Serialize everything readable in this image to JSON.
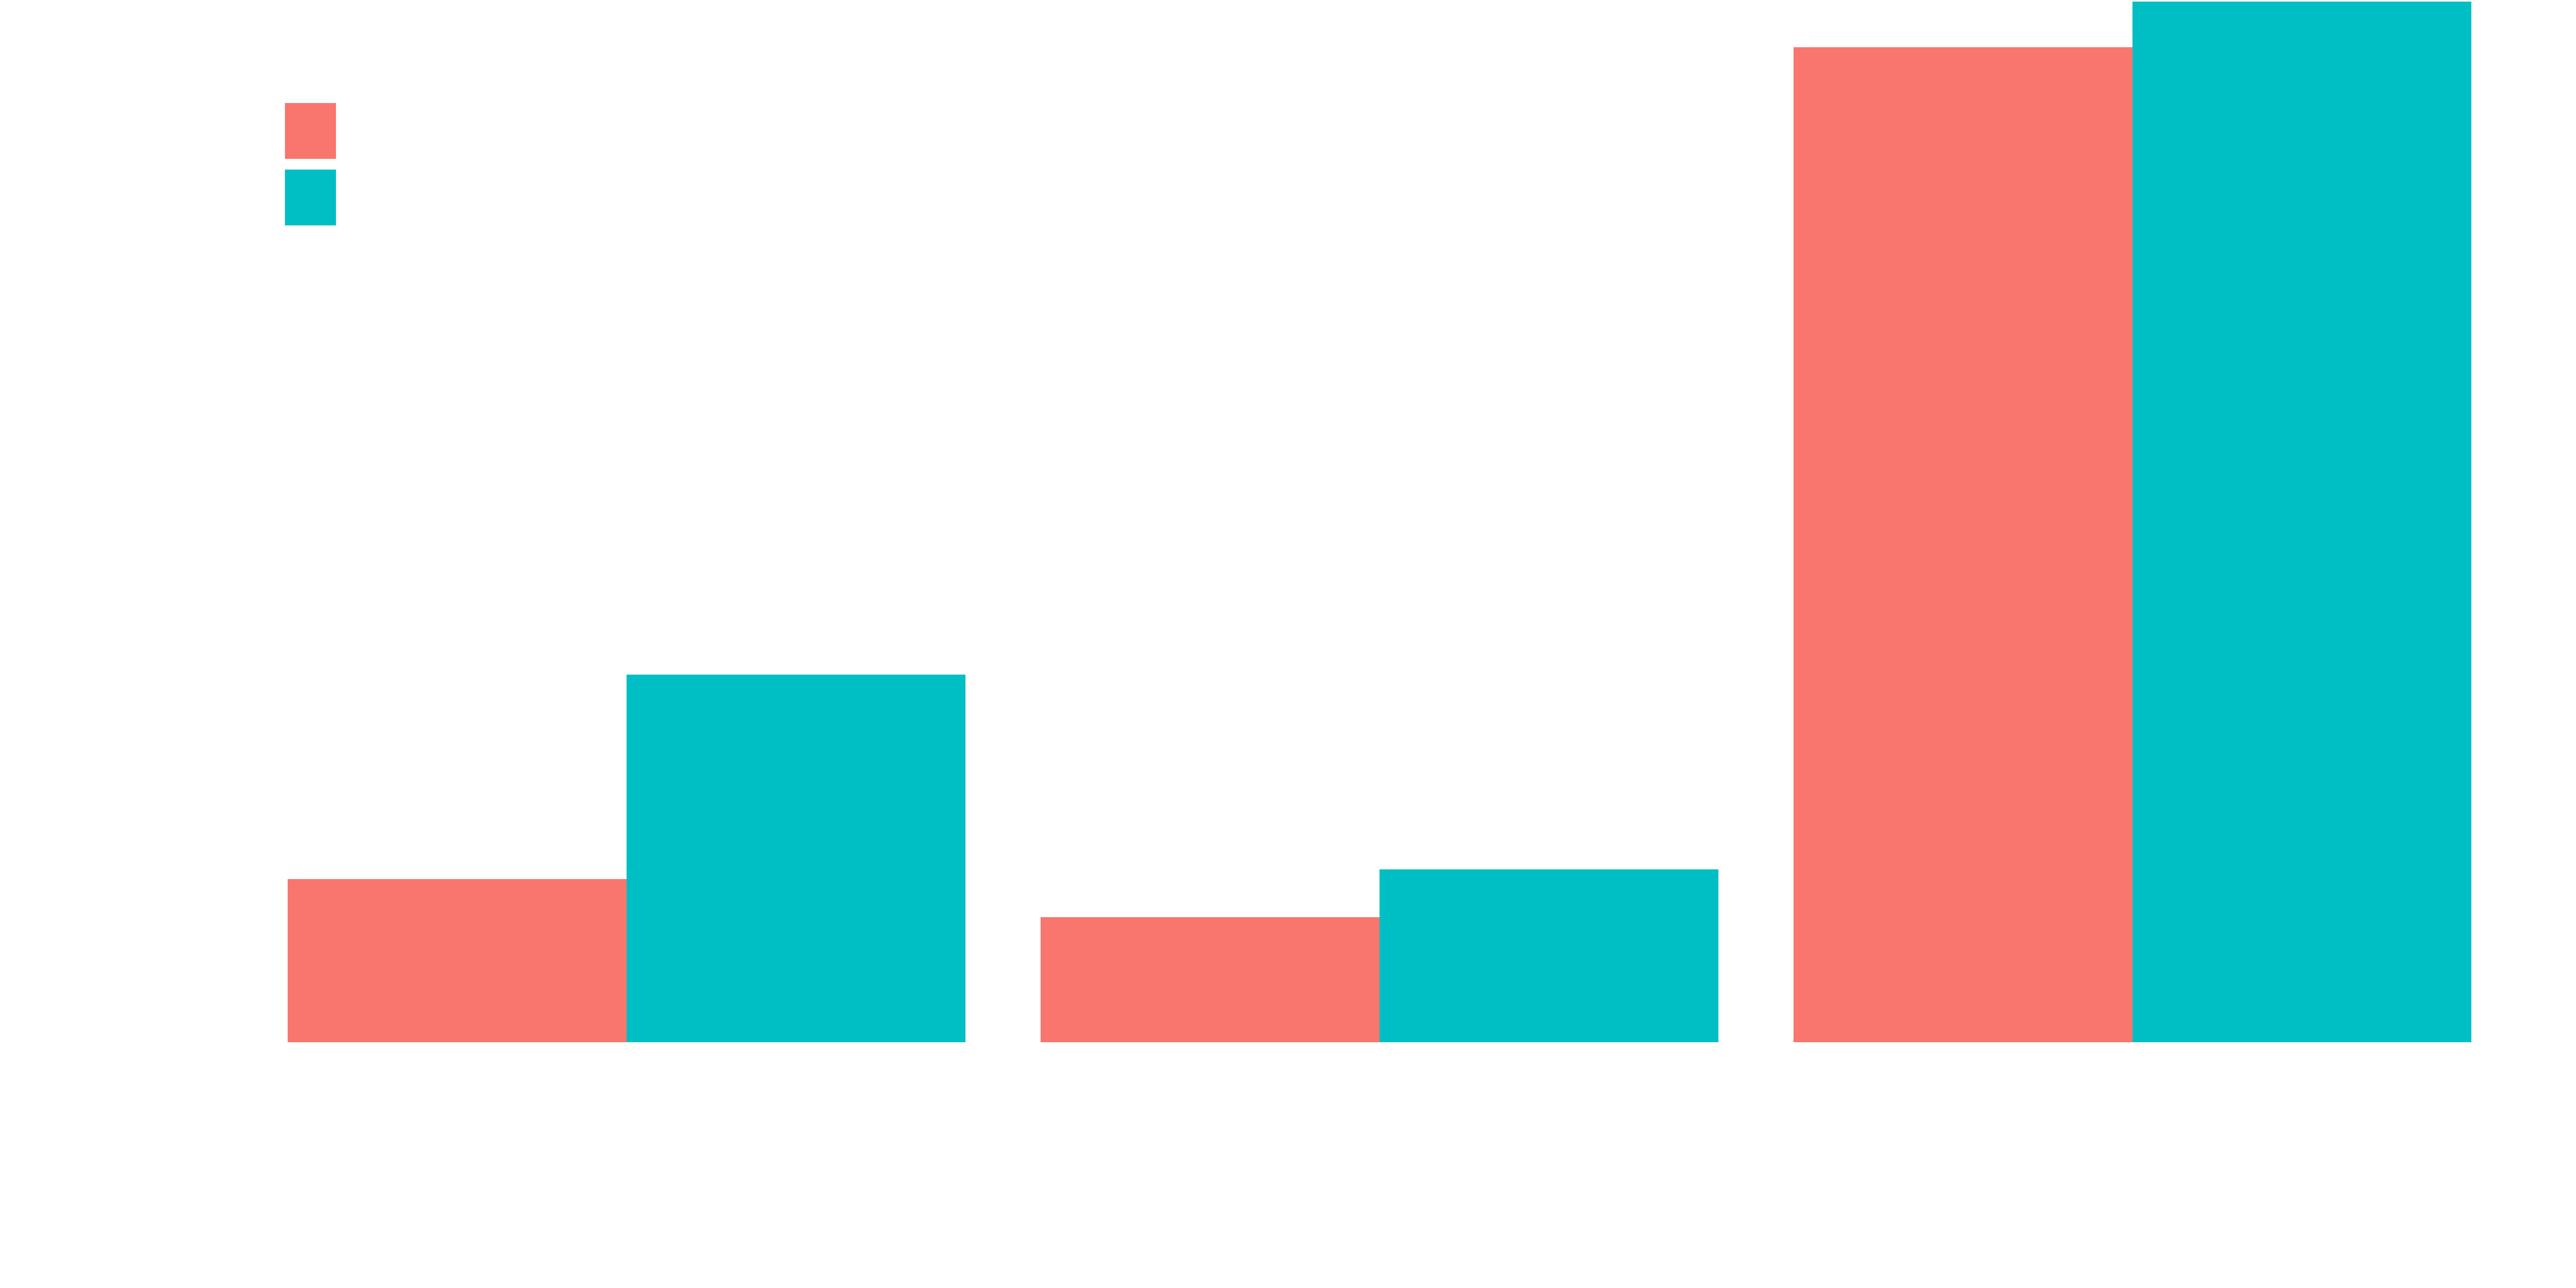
{
  "chart_data": {
    "type": "bar",
    "title": "",
    "xlabel": "",
    "ylabel": "",
    "categories": [
      "",
      "",
      ""
    ],
    "series": [
      {
        "color": "#F8766D",
        "values": [
          1.5,
          1.15,
          9.15
        ]
      },
      {
        "color": "#00BFC4",
        "values": [
          3.38,
          1.59,
          9.57
        ]
      }
    ],
    "ylim": [
      0,
      9.57
    ],
    "grid": false,
    "legend": {
      "placement": "top-left",
      "entries": [
        {
          "color": "#F8766D",
          "label": ""
        },
        {
          "color": "#00BFC4",
          "label": ""
        }
      ]
    }
  }
}
